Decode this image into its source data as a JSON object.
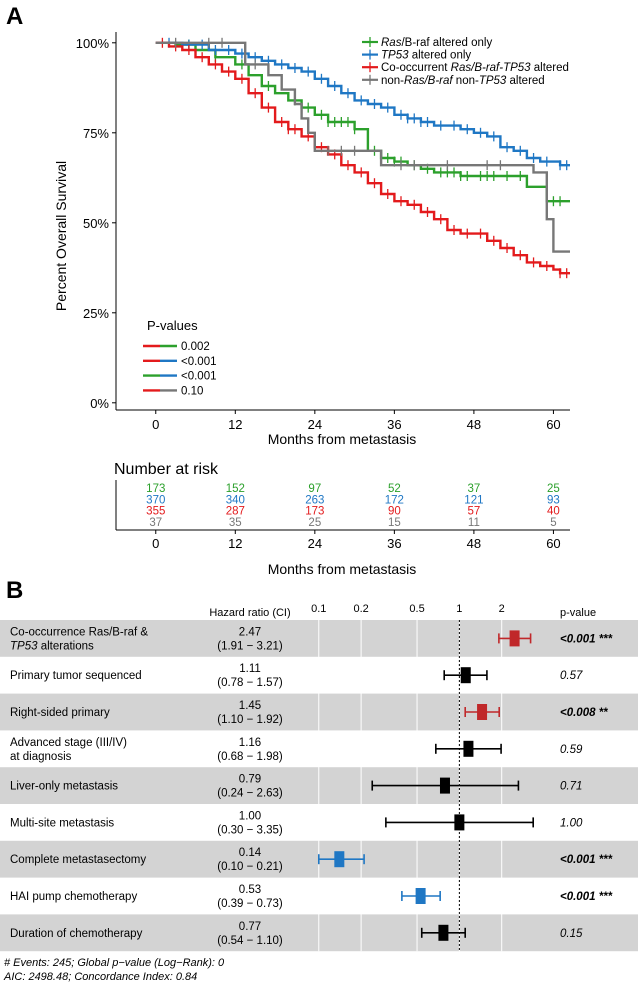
{
  "panel_a_label": "A",
  "panel_b_label": "B",
  "chart_data": [
    {
      "type": "line",
      "subtype": "kaplan-meier",
      "title": "",
      "xlabel": "Months from metastasis",
      "ylabel": "Percent Overall Survival",
      "xlim": [
        -6,
        62.5
      ],
      "ylim": [
        -0.02,
        1.03
      ],
      "x_ticks": [
        0,
        12,
        24,
        36,
        48,
        60
      ],
      "y_ticks": [
        1.0,
        0.75,
        0.5,
        0.25,
        0.0
      ],
      "y_tick_labels": [
        "100%",
        "75%",
        "50%",
        "25%",
        "0%"
      ],
      "legend": [
        {
          "parts": [
            {
              "t": "Ras",
              "i": true
            },
            {
              "t": "/B-raf altered only",
              "i": false
            }
          ],
          "color": "#2ca02c"
        },
        {
          "parts": [
            {
              "t": "TP53",
              "i": true
            },
            {
              "t": " altered only",
              "i": false
            }
          ],
          "color": "#1f77c4"
        },
        {
          "parts": [
            {
              "t": "Co-occurrent ",
              "i": false
            },
            {
              "t": "Ras/B-raf-TP53",
              "i": true
            },
            {
              "t": " altered",
              "i": false
            }
          ],
          "color": "#e31a1c"
        },
        {
          "parts": [
            {
              "t": "non-",
              "i": false
            },
            {
              "t": "Ras/B-raf",
              "i": true
            },
            {
              "t": " non-",
              "i": false
            },
            {
              "t": "TP53",
              "i": true
            },
            {
              "t": " altered",
              "i": false
            }
          ],
          "color": "#777777"
        }
      ],
      "pvalue_title": "P-values",
      "pvalues": [
        {
          "label": "0.002",
          "colors": [
            "#e31a1c",
            "#2ca02c"
          ]
        },
        {
          "label": "<0.001",
          "colors": [
            "#e31a1c",
            "#1f77c4"
          ]
        },
        {
          "label": "<0.001",
          "colors": [
            "#2ca02c",
            "#1f77c4"
          ]
        },
        {
          "label": "0.10",
          "colors": [
            "#e31a1c",
            "#777777"
          ]
        }
      ],
      "series": [
        {
          "name": "Ras/B-raf altered only",
          "color": "#2ca02c",
          "points": [
            [
              0,
              1
            ],
            [
              3,
              0.995
            ],
            [
              6,
              0.98
            ],
            [
              9,
              0.96
            ],
            [
              12,
              0.94
            ],
            [
              14,
              0.91
            ],
            [
              16,
              0.88
            ],
            [
              18,
              0.86
            ],
            [
              20,
              0.84
            ],
            [
              22,
              0.82
            ],
            [
              24,
              0.8
            ],
            [
              26,
              0.78
            ],
            [
              28,
              0.78
            ],
            [
              30,
              0.76
            ],
            [
              32,
              0.7
            ],
            [
              34,
              0.68
            ],
            [
              36,
              0.67
            ],
            [
              38,
              0.66
            ],
            [
              40,
              0.65
            ],
            [
              42,
              0.64
            ],
            [
              44,
              0.64
            ],
            [
              46,
              0.63
            ],
            [
              48,
              0.63
            ],
            [
              50,
              0.63
            ],
            [
              52,
              0.63
            ],
            [
              54,
              0.63
            ],
            [
              56,
              0.6
            ],
            [
              58,
              0.6
            ],
            [
              59,
              0.56
            ],
            [
              61,
              0.56
            ],
            [
              62.5,
              0.56
            ]
          ],
          "censor": [
            5,
            9,
            13,
            17,
            21,
            23,
            25,
            26,
            27,
            28,
            29,
            30,
            33,
            35,
            36,
            37,
            39,
            41,
            43,
            44,
            45,
            46,
            47,
            49,
            50,
            51,
            53,
            55,
            60,
            61
          ]
        },
        {
          "name": "TP53 altered only",
          "color": "#1f77c4",
          "points": [
            [
              0,
              1
            ],
            [
              4,
              0.995
            ],
            [
              8,
              0.98
            ],
            [
              12,
              0.97
            ],
            [
              14,
              0.96
            ],
            [
              16,
              0.95
            ],
            [
              18,
              0.94
            ],
            [
              20,
              0.93
            ],
            [
              22,
              0.92
            ],
            [
              24,
              0.9
            ],
            [
              26,
              0.88
            ],
            [
              28,
              0.86
            ],
            [
              30,
              0.84
            ],
            [
              32,
              0.83
            ],
            [
              34,
              0.82
            ],
            [
              36,
              0.8
            ],
            [
              38,
              0.79
            ],
            [
              40,
              0.78
            ],
            [
              42,
              0.77
            ],
            [
              44,
              0.77
            ],
            [
              46,
              0.76
            ],
            [
              48,
              0.75
            ],
            [
              50,
              0.74
            ],
            [
              52,
              0.71
            ],
            [
              54,
              0.7
            ],
            [
              56,
              0.68
            ],
            [
              58,
              0.67
            ],
            [
              60,
              0.67
            ],
            [
              61,
              0.66
            ],
            [
              62.5,
              0.66
            ]
          ],
          "censor": [
            2,
            5,
            7,
            9,
            11,
            13,
            15,
            17,
            19,
            21,
            23,
            25,
            27,
            29,
            31,
            33,
            35,
            37,
            38,
            39,
            40,
            41,
            43,
            45,
            47,
            49,
            51,
            53,
            55,
            57,
            59,
            61,
            62
          ]
        },
        {
          "name": "Co-occurrent Ras/B-raf-TP53 altered",
          "color": "#e31a1c",
          "points": [
            [
              0,
              1
            ],
            [
              2,
              0.99
            ],
            [
              4,
              0.98
            ],
            [
              6,
              0.96
            ],
            [
              8,
              0.94
            ],
            [
              10,
              0.92
            ],
            [
              12,
              0.9
            ],
            [
              14,
              0.86
            ],
            [
              16,
              0.82
            ],
            [
              18,
              0.78
            ],
            [
              20,
              0.76
            ],
            [
              22,
              0.74
            ],
            [
              24,
              0.71
            ],
            [
              26,
              0.69
            ],
            [
              28,
              0.66
            ],
            [
              30,
              0.64
            ],
            [
              32,
              0.61
            ],
            [
              34,
              0.58
            ],
            [
              36,
              0.56
            ],
            [
              38,
              0.55
            ],
            [
              40,
              0.53
            ],
            [
              42,
              0.51
            ],
            [
              44,
              0.48
            ],
            [
              46,
              0.47
            ],
            [
              48,
              0.47
            ],
            [
              50,
              0.45
            ],
            [
              52,
              0.43
            ],
            [
              54,
              0.41
            ],
            [
              56,
              0.39
            ],
            [
              58,
              0.38
            ],
            [
              60,
              0.37
            ],
            [
              61,
              0.36
            ],
            [
              62.5,
              0.36
            ]
          ],
          "censor": [
            1,
            3,
            5,
            7,
            9,
            11,
            13,
            15,
            17,
            19,
            20,
            21,
            23,
            25,
            27,
            29,
            31,
            33,
            35,
            37,
            39,
            41,
            43,
            45,
            47,
            49,
            51,
            53,
            55,
            57,
            59,
            61,
            62
          ]
        },
        {
          "name": "non-Ras/B-raf non-TP53 altered",
          "color": "#777777",
          "points": [
            [
              0,
              1
            ],
            [
              13.5,
              1
            ],
            [
              13.5,
              0.94
            ],
            [
              17,
              0.94
            ],
            [
              17,
              0.91
            ],
            [
              19,
              0.91
            ],
            [
              19,
              0.87
            ],
            [
              21,
              0.87
            ],
            [
              21,
              0.83
            ],
            [
              22,
              0.83
            ],
            [
              22,
              0.79
            ],
            [
              23,
              0.79
            ],
            [
              23,
              0.75
            ],
            [
              24,
              0.75
            ],
            [
              24,
              0.7
            ],
            [
              34,
              0.7
            ],
            [
              34,
              0.66
            ],
            [
              57,
              0.66
            ],
            [
              57,
              0.64
            ],
            [
              59,
              0.64
            ],
            [
              59,
              0.51
            ],
            [
              60,
              0.51
            ],
            [
              60,
              0.42
            ],
            [
              62.5,
              0.42
            ]
          ],
          "censor": [
            3,
            8,
            10,
            15,
            26,
            28,
            30,
            37,
            39,
            44,
            50,
            52
          ]
        }
      ],
      "risk_table": {
        "title": "Number at risk",
        "times": [
          0,
          12,
          24,
          36,
          48,
          60
        ],
        "rows": [
          {
            "color": "#2ca02c",
            "values": [
              "173",
              "152",
              "97",
              "52",
              "37",
              "25"
            ]
          },
          {
            "color": "#1f77c4",
            "values": [
              "370",
              "340",
              "263",
              "172",
              "121",
              "93"
            ]
          },
          {
            "color": "#e31a1c",
            "values": [
              "355",
              "287",
              "173",
              "90",
              "57",
              "40"
            ]
          },
          {
            "color": "#777777",
            "values": [
              "37",
              "35",
              "25",
              "15",
              "11",
              "5"
            ]
          }
        ],
        "xlabel": "Months from metastasis",
        "x_tick_labels": [
          "0",
          "12",
          "24",
          "36",
          "48",
          "60"
        ]
      }
    },
    {
      "type": "forest",
      "x_scale": "log",
      "xlim": [
        0.07,
        4.2
      ],
      "x_ticks": [
        0.1,
        0.2,
        0.5,
        1,
        2
      ],
      "x_tick_labels": [
        "0.1",
        "0.2",
        "0.5",
        "1",
        "2"
      ],
      "col_hr_header": "Hazard ratio (CI)",
      "col_p_header": "p-value",
      "rows": [
        {
          "label1": "Co-occurrence Ras/B-raf &",
          "label2_parts": [
            {
              "t": "TP53",
              "i": true
            },
            {
              "t": " alterations",
              "i": false
            }
          ],
          "hr": "2.47",
          "ci": "(1.91 − 3.21)",
          "est": 2.47,
          "lo": 1.91,
          "hi": 3.21,
          "p": "<0.001",
          "stars": "***",
          "bold": true,
          "color": "#c0282a",
          "shaded": true
        },
        {
          "label1": "Primary tumor sequenced",
          "label2_parts": [],
          "hr": "1.11",
          "ci": "(0.78 − 1.57)",
          "est": 1.11,
          "lo": 0.78,
          "hi": 1.57,
          "p": "0.57",
          "stars": "",
          "bold": false,
          "color": "#000000",
          "shaded": false
        },
        {
          "label1": "Right-sided primary",
          "label2_parts": [],
          "hr": "1.45",
          "ci": "(1.10 − 1.92)",
          "est": 1.45,
          "lo": 1.1,
          "hi": 1.92,
          "p": "<0.008",
          "stars": "**",
          "bold": true,
          "color": "#c0282a",
          "shaded": true
        },
        {
          "label1": "Advanced stage (III/IV)",
          "label2_parts": [
            {
              "t": "at diagnosis",
              "i": false
            }
          ],
          "hr": "1.16",
          "ci": "(0.68 − 1.98)",
          "est": 1.16,
          "lo": 0.68,
          "hi": 1.98,
          "p": "0.59",
          "stars": "",
          "bold": false,
          "color": "#000000",
          "shaded": false
        },
        {
          "label1": "Liver-only metastasis",
          "label2_parts": [],
          "hr": "0.79",
          "ci": "(0.24 − 2.63)",
          "est": 0.79,
          "lo": 0.24,
          "hi": 2.63,
          "p": "0.71",
          "stars": "",
          "bold": false,
          "color": "#000000",
          "shaded": true
        },
        {
          "label1": "Multi-site metastasis",
          "label2_parts": [],
          "hr": "1.00",
          "ci": "(0.30 − 3.35)",
          "est": 1.0,
          "lo": 0.3,
          "hi": 3.35,
          "p": "1.00",
          "stars": "",
          "bold": false,
          "color": "#000000",
          "shaded": false
        },
        {
          "label1": "Complete metastasectomy",
          "label2_parts": [],
          "hr": "0.14",
          "ci": "(0.10 − 0.21)",
          "est": 0.14,
          "lo": 0.1,
          "hi": 0.21,
          "p": "<0.001",
          "stars": "***",
          "bold": true,
          "color": "#1f77c4",
          "shaded": true
        },
        {
          "label1": "HAI pump chemotherapy",
          "label2_parts": [],
          "hr": "0.53",
          "ci": "(0.39 − 0.73)",
          "est": 0.53,
          "lo": 0.39,
          "hi": 0.73,
          "p": "<0.001",
          "stars": "***",
          "bold": true,
          "color": "#1f77c4",
          "shaded": false
        },
        {
          "label1": "Duration of chemotherapy",
          "label2_parts": [],
          "hr": "0.77",
          "ci": "(0.54 − 1.10)",
          "est": 0.77,
          "lo": 0.54,
          "hi": 1.1,
          "p": "0.15",
          "stars": "",
          "bold": false,
          "color": "#000000",
          "shaded": true
        }
      ],
      "footer_line1": "# Events: 245; Global p−value (Log−Rank): 0",
      "footer_line2": "AIC: 2498.48; Concordance Index: 0.84"
    }
  ]
}
